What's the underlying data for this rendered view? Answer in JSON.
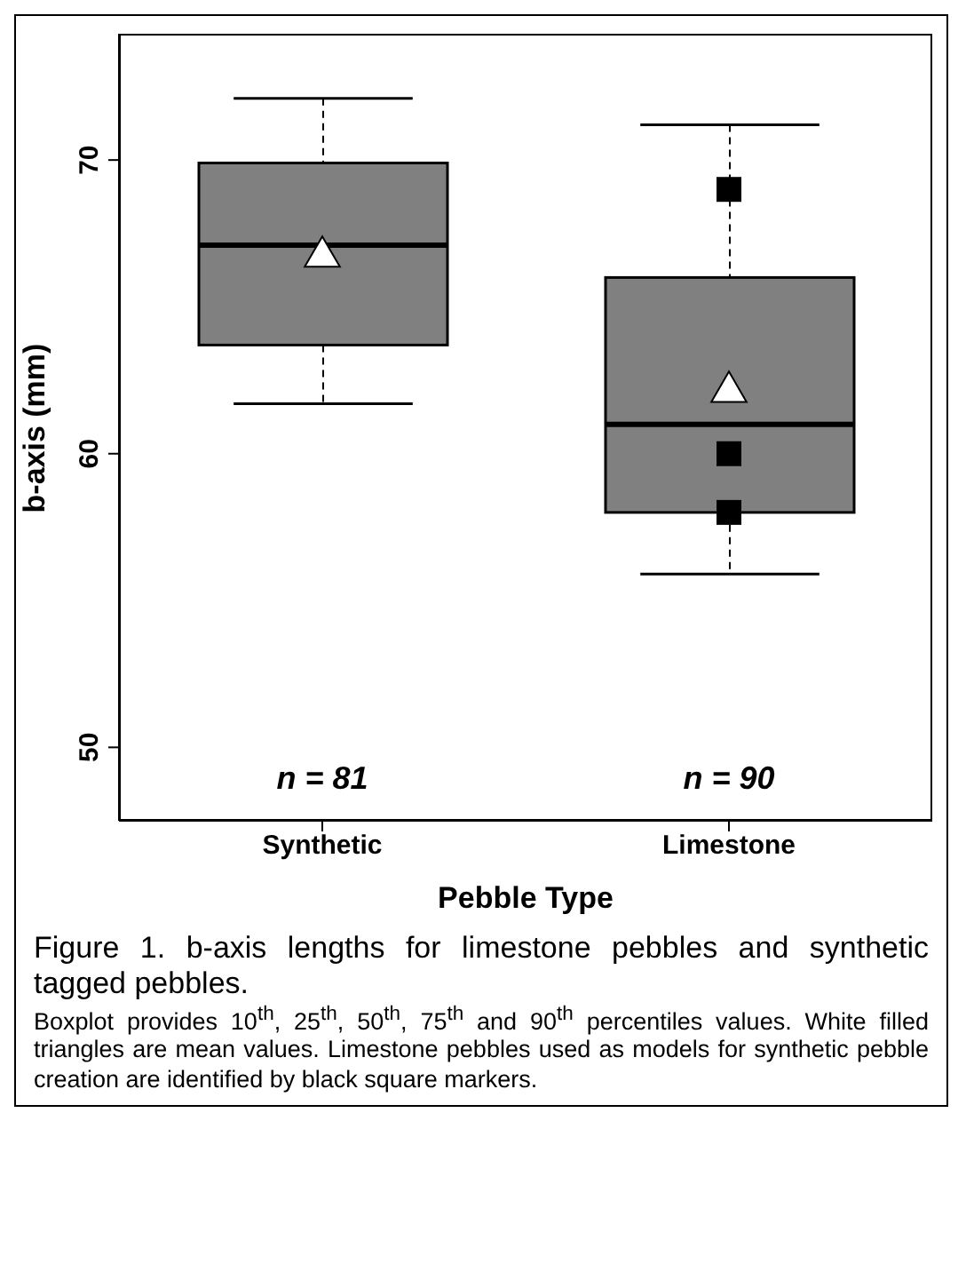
{
  "chart_data": {
    "type": "box",
    "categories": [
      "Synthetic",
      "Limestone"
    ],
    "xlabel": "Pebble Type",
    "ylabel": "b-axis (mm)",
    "ylim": [
      47.5,
      74.3
    ],
    "yticks": [
      50,
      60,
      70
    ],
    "grid": false,
    "legend": false,
    "color": "#808080",
    "boxes": [
      {
        "low": 61.7,
        "q1": 63.7,
        "median": 67.1,
        "q3": 69.9,
        "high": 72.1,
        "mean": 66.8
      },
      {
        "low": 55.9,
        "q1": 58,
        "median": 61,
        "q3": 66,
        "high": 71.2,
        "mean": 62.2
      }
    ],
    "series": [
      {
        "type": "scatter",
        "x": [
          "Limestone",
          "Limestone",
          "Limestone"
        ],
        "values": [
          69,
          60,
          58
        ],
        "color": "#000000",
        "marker": "square"
      }
    ],
    "annotations": [
      "n = 81",
      "n = 90",
      "Figure 1. b-axis lengths for limestone pebbles and synthetic tagged pebbles.",
      "Boxplot provides 10$^{th}$, 25$^{th}$, 50$^{th}$, 75$^{th}$ and 90$^{th}$ percentiles values. White filled triangles are mean values. Limestone pebbles used as models for synthetic pebble creation are identified by black square markers."
    ]
  }
}
